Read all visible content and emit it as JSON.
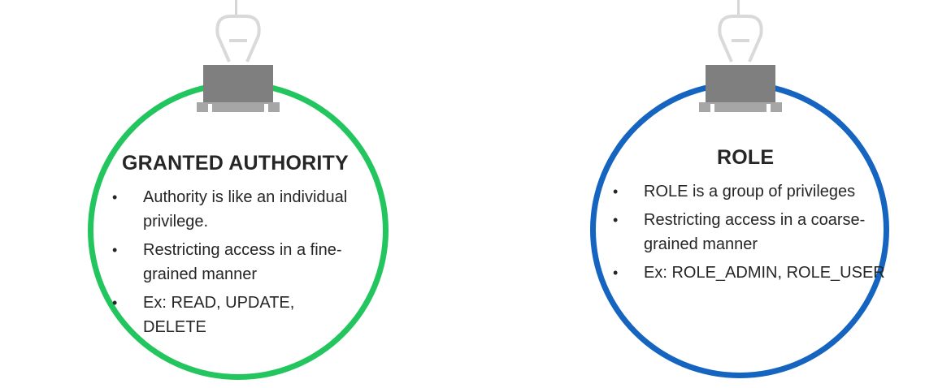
{
  "colors": {
    "authority_ring": "#22c55e",
    "role_ring": "#1565c0",
    "clip_body": "#7f7f7f",
    "clip_wire": "#d9d9d9",
    "text": "#262626"
  },
  "cards": [
    {
      "title": "GRANTED AUTHORITY",
      "bullets": [
        "Authority is like an individual privilege.",
        "Restricting access in a fine-grained manner",
        "Ex: READ, UPDATE, DELETE"
      ]
    },
    {
      "title": "ROLE",
      "bullets": [
        "ROLE is a group of privileges",
        "Restricting access in a coarse-grained manner",
        "Ex: ROLE_ADMIN, ROLE_USER"
      ]
    }
  ],
  "icons": [
    "binder-clip-icon",
    "bullet-dot-icon"
  ]
}
